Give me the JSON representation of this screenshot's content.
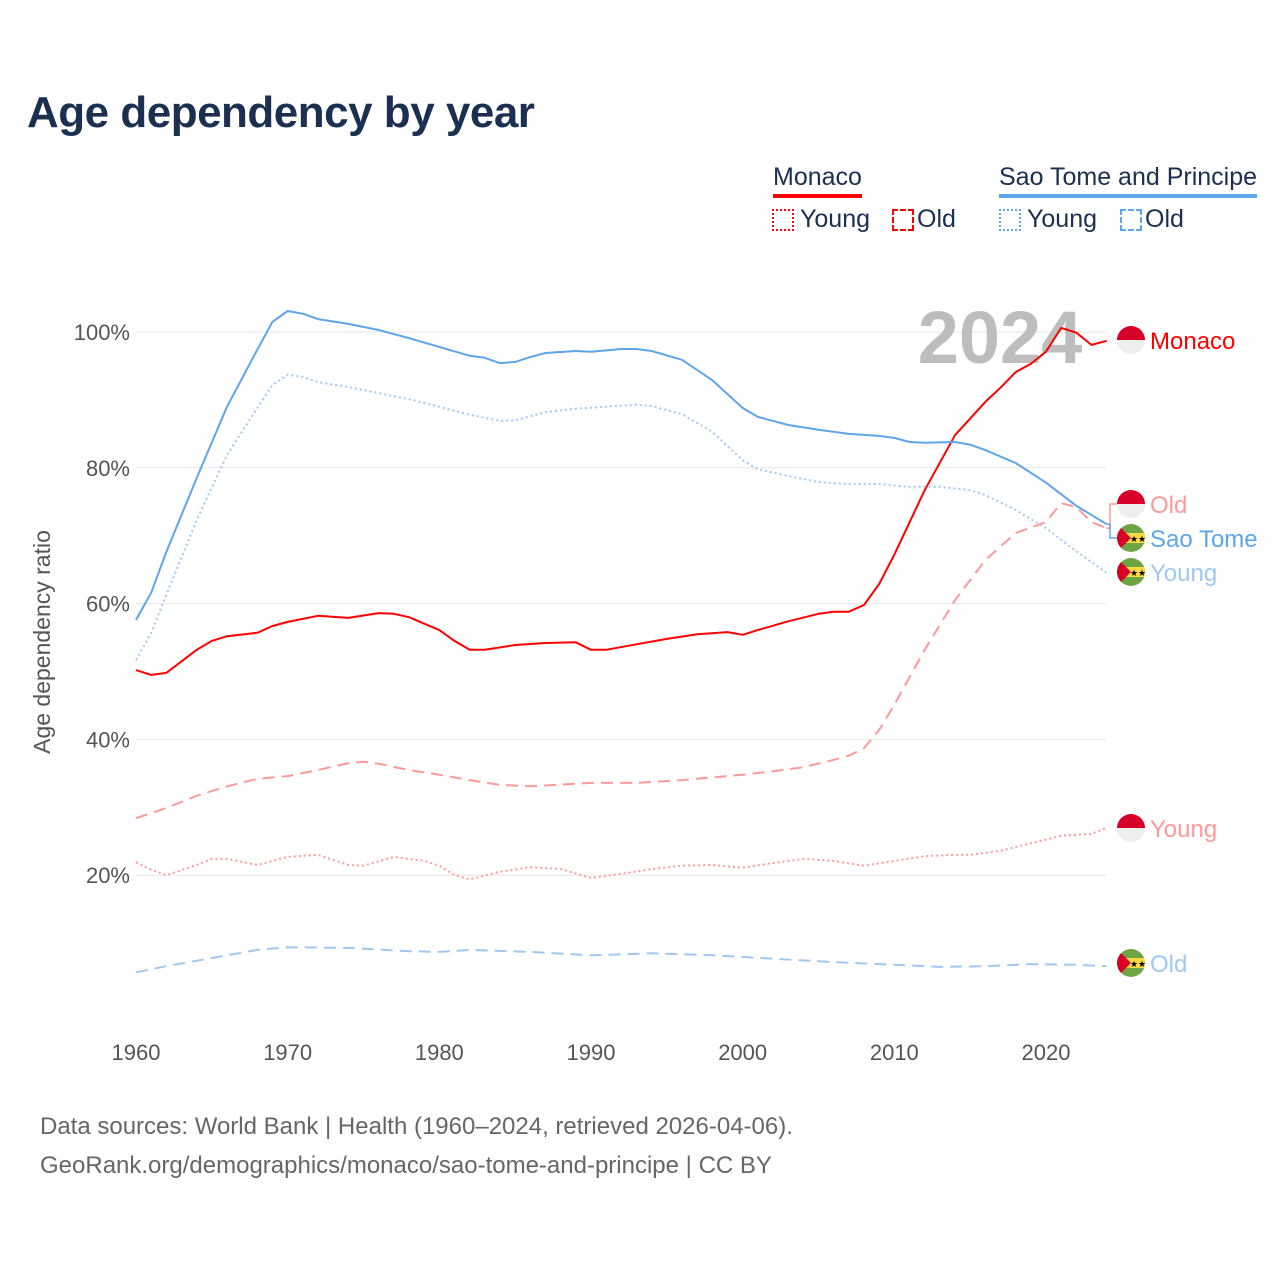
{
  "title": "Age dependency by year",
  "legend": {
    "groups": [
      {
        "name": "Monaco",
        "color": "#ff0000",
        "items": [
          "Young",
          "Old"
        ]
      },
      {
        "name": "Sao Tome and Principe",
        "color": "#5ea5ea",
        "items": [
          "Young",
          "Old"
        ]
      }
    ]
  },
  "watermark_year": "2024",
  "footer": {
    "line1": "Data sources: World Bank | Health (1960–2024, retrieved 2026-04-06).",
    "line2": "GeoRank.org/demographics/monaco/sao-tome-and-principe | CC BY"
  },
  "chart_data": {
    "type": "line",
    "title": "Age dependency by year",
    "xlabel": "",
    "ylabel": "Age dependency ratio",
    "xlim": [
      1960,
      2024
    ],
    "ylim": [
      0,
      110
    ],
    "xticks": [
      "1960",
      "1970",
      "1980",
      "1990",
      "2000",
      "2010",
      "2020"
    ],
    "yticks": [
      "20%",
      "40%",
      "60%",
      "80%",
      "100%"
    ],
    "grid": true,
    "legend_position": "top-right",
    "series": [
      {
        "name": "Monaco",
        "end_label": "Monaco",
        "style": "solid",
        "color": "#ff0000",
        "flag": "monaco",
        "points": [
          [
            1960,
            50.2
          ],
          [
            1961,
            49.5
          ],
          [
            1962,
            49.8
          ],
          [
            1964,
            53.2
          ],
          [
            1965,
            54.5
          ],
          [
            1966,
            55.2
          ],
          [
            1968,
            55.7
          ],
          [
            1969,
            56.7
          ],
          [
            1970,
            57.3
          ],
          [
            1972,
            58.2
          ],
          [
            1974,
            57.9
          ],
          [
            1976,
            58.6
          ],
          [
            1977,
            58.5
          ],
          [
            1978,
            58.0
          ],
          [
            1980,
            56.1
          ],
          [
            1981,
            54.5
          ],
          [
            1982,
            53.2
          ],
          [
            1983,
            53.2
          ],
          [
            1985,
            53.9
          ],
          [
            1987,
            54.2
          ],
          [
            1989,
            54.3
          ],
          [
            1990,
            53.2
          ],
          [
            1991,
            53.2
          ],
          [
            1993,
            54.0
          ],
          [
            1995,
            54.8
          ],
          [
            1997,
            55.5
          ],
          [
            1999,
            55.8
          ],
          [
            2000,
            55.4
          ],
          [
            2001,
            56.1
          ],
          [
            2003,
            57.4
          ],
          [
            2005,
            58.5
          ],
          [
            2006,
            58.8
          ],
          [
            2007,
            58.8
          ],
          [
            2008,
            59.8
          ],
          [
            2009,
            62.9
          ],
          [
            2010,
            67.2
          ],
          [
            2012,
            76.7
          ],
          [
            2014,
            84.8
          ],
          [
            2016,
            89.7
          ],
          [
            2017,
            91.8
          ],
          [
            2018,
            94.1
          ],
          [
            2019,
            95.3
          ],
          [
            2020,
            97.1
          ],
          [
            2021,
            100.6
          ],
          [
            2022,
            99.9
          ],
          [
            2023,
            98.1
          ],
          [
            2024,
            98.7
          ]
        ]
      },
      {
        "name": "Monaco Old",
        "end_label": "Old",
        "style": "dashed",
        "color": "#ff9999",
        "flag": "monaco",
        "points": [
          [
            1960,
            28.4
          ],
          [
            1962,
            29.9
          ],
          [
            1964,
            31.7
          ],
          [
            1966,
            33.1
          ],
          [
            1968,
            34.2
          ],
          [
            1970,
            34.6
          ],
          [
            1972,
            35.5
          ],
          [
            1974,
            36.5
          ],
          [
            1975,
            36.7
          ],
          [
            1976,
            36.4
          ],
          [
            1978,
            35.5
          ],
          [
            1980,
            34.8
          ],
          [
            1982,
            34.0
          ],
          [
            1984,
            33.3
          ],
          [
            1986,
            33.1
          ],
          [
            1990,
            33.6
          ],
          [
            1993,
            33.6
          ],
          [
            1996,
            34.0
          ],
          [
            2000,
            34.8
          ],
          [
            2002,
            35.3
          ],
          [
            2004,
            35.9
          ],
          [
            2006,
            37.0
          ],
          [
            2007,
            37.6
          ],
          [
            2008,
            38.7
          ],
          [
            2009,
            41.4
          ],
          [
            2010,
            45.1
          ],
          [
            2012,
            53.2
          ],
          [
            2014,
            60.5
          ],
          [
            2016,
            66.4
          ],
          [
            2018,
            70.4
          ],
          [
            2020,
            72.0
          ],
          [
            2021,
            74.8
          ],
          [
            2022,
            74.2
          ],
          [
            2023,
            72.0
          ],
          [
            2024,
            71.1
          ]
        ]
      },
      {
        "name": "Monaco Young",
        "end_label": "Young",
        "style": "dotted",
        "color": "#ff9999",
        "flag": "monaco",
        "points": [
          [
            1960,
            21.9
          ],
          [
            1961,
            20.8
          ],
          [
            1962,
            20.0
          ],
          [
            1964,
            21.5
          ],
          [
            1965,
            22.4
          ],
          [
            1966,
            22.4
          ],
          [
            1968,
            21.5
          ],
          [
            1970,
            22.7
          ],
          [
            1972,
            23.0
          ],
          [
            1974,
            21.5
          ],
          [
            1975,
            21.4
          ],
          [
            1977,
            22.7
          ],
          [
            1979,
            22.1
          ],
          [
            1980,
            21.4
          ],
          [
            1981,
            20.0
          ],
          [
            1982,
            19.4
          ],
          [
            1984,
            20.5
          ],
          [
            1986,
            21.2
          ],
          [
            1988,
            20.9
          ],
          [
            1990,
            19.6
          ],
          [
            1992,
            20.2
          ],
          [
            1994,
            20.9
          ],
          [
            1996,
            21.4
          ],
          [
            1998,
            21.5
          ],
          [
            2000,
            21.1
          ],
          [
            2002,
            21.8
          ],
          [
            2004,
            22.4
          ],
          [
            2006,
            22.1
          ],
          [
            2008,
            21.4
          ],
          [
            2010,
            22.1
          ],
          [
            2012,
            22.8
          ],
          [
            2014,
            23.0
          ],
          [
            2015,
            23.0
          ],
          [
            2017,
            23.6
          ],
          [
            2019,
            24.7
          ],
          [
            2021,
            25.8
          ],
          [
            2023,
            26.1
          ],
          [
            2024,
            27.0
          ]
        ]
      },
      {
        "name": "Sao Tome and Principe",
        "end_label": "Sao Tome",
        "style": "solid",
        "color": "#5ea5ea",
        "flag": "stp",
        "points": [
          [
            1960,
            57.6
          ],
          [
            1961,
            61.6
          ],
          [
            1962,
            67.6
          ],
          [
            1964,
            78.5
          ],
          [
            1966,
            89.0
          ],
          [
            1968,
            97.4
          ],
          [
            1969,
            101.5
          ],
          [
            1970,
            103.1
          ],
          [
            1971,
            102.7
          ],
          [
            1972,
            101.9
          ],
          [
            1974,
            101.2
          ],
          [
            1976,
            100.3
          ],
          [
            1978,
            99.1
          ],
          [
            1980,
            97.8
          ],
          [
            1982,
            96.5
          ],
          [
            1983,
            96.2
          ],
          [
            1984,
            95.4
          ],
          [
            1985,
            95.6
          ],
          [
            1986,
            96.3
          ],
          [
            1987,
            96.9
          ],
          [
            1989,
            97.2
          ],
          [
            1990,
            97.1
          ],
          [
            1992,
            97.5
          ],
          [
            1993,
            97.5
          ],
          [
            1994,
            97.2
          ],
          [
            1996,
            95.9
          ],
          [
            1998,
            92.9
          ],
          [
            2000,
            88.8
          ],
          [
            2001,
            87.5
          ],
          [
            2003,
            86.3
          ],
          [
            2005,
            85.6
          ],
          [
            2007,
            85.0
          ],
          [
            2009,
            84.7
          ],
          [
            2010,
            84.4
          ],
          [
            2011,
            83.8
          ],
          [
            2012,
            83.7
          ],
          [
            2014,
            83.8
          ],
          [
            2015,
            83.4
          ],
          [
            2016,
            82.6
          ],
          [
            2018,
            80.7
          ],
          [
            2020,
            77.8
          ],
          [
            2022,
            74.4
          ],
          [
            2024,
            71.7
          ]
        ]
      },
      {
        "name": "Sao Tome and Principe Young",
        "end_label": "Young",
        "style": "dotted",
        "color": "#a0c8f0",
        "flag": "stp",
        "points": [
          [
            1960,
            51.7
          ],
          [
            1961,
            55.7
          ],
          [
            1962,
            61.3
          ],
          [
            1964,
            72.3
          ],
          [
            1966,
            81.9
          ],
          [
            1968,
            88.8
          ],
          [
            1969,
            92.2
          ],
          [
            1970,
            93.7
          ],
          [
            1971,
            93.4
          ],
          [
            1972,
            92.6
          ],
          [
            1974,
            91.9
          ],
          [
            1976,
            91.0
          ],
          [
            1978,
            90.1
          ],
          [
            1980,
            89.0
          ],
          [
            1982,
            87.8
          ],
          [
            1984,
            86.9
          ],
          [
            1985,
            87.0
          ],
          [
            1987,
            88.2
          ],
          [
            1989,
            88.7
          ],
          [
            1991,
            89.0
          ],
          [
            1993,
            89.3
          ],
          [
            1994,
            89.1
          ],
          [
            1996,
            87.9
          ],
          [
            1998,
            85.3
          ],
          [
            2000,
            81.1
          ],
          [
            2001,
            79.8
          ],
          [
            2003,
            78.8
          ],
          [
            2005,
            77.9
          ],
          [
            2007,
            77.6
          ],
          [
            2009,
            77.6
          ],
          [
            2011,
            77.2
          ],
          [
            2013,
            77.2
          ],
          [
            2015,
            76.7
          ],
          [
            2016,
            76.0
          ],
          [
            2018,
            73.8
          ],
          [
            2020,
            71.1
          ],
          [
            2022,
            67.7
          ],
          [
            2024,
            64.5
          ]
        ]
      },
      {
        "name": "Sao Tome and Principe Old",
        "end_label": "Old",
        "style": "dashed",
        "color": "#a0c8f0",
        "flag": "stp",
        "points": [
          [
            1960,
            5.7
          ],
          [
            1962,
            6.6
          ],
          [
            1965,
            7.8
          ],
          [
            1968,
            9.0
          ],
          [
            1970,
            9.4
          ],
          [
            1974,
            9.3
          ],
          [
            1978,
            8.8
          ],
          [
            1980,
            8.7
          ],
          [
            1982,
            9.0
          ],
          [
            1986,
            8.7
          ],
          [
            1990,
            8.2
          ],
          [
            1994,
            8.5
          ],
          [
            1998,
            8.2
          ],
          [
            2002,
            7.7
          ],
          [
            2006,
            7.2
          ],
          [
            2010,
            6.8
          ],
          [
            2013,
            6.5
          ],
          [
            2016,
            6.6
          ],
          [
            2019,
            6.9
          ],
          [
            2022,
            6.8
          ],
          [
            2024,
            6.6
          ]
        ]
      }
    ]
  }
}
